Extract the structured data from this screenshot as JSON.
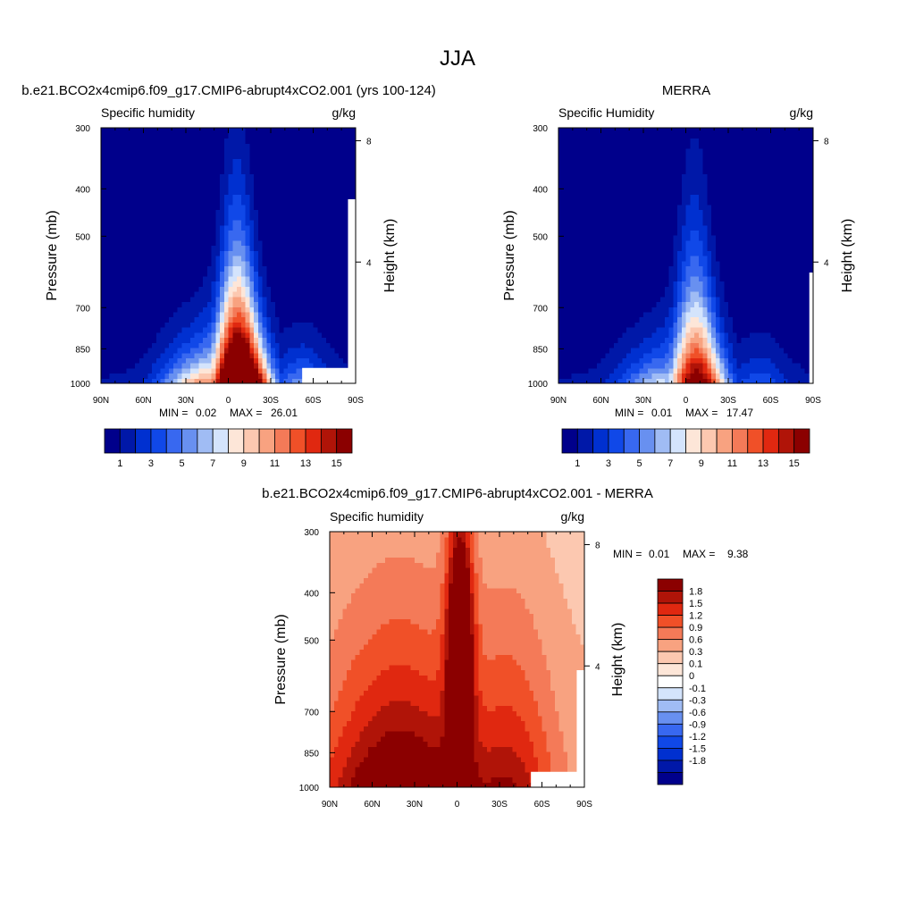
{
  "figure": {
    "title": "JJA"
  },
  "chart_data": [
    {
      "type": "heatmap",
      "title": "b.e21.BCO2x4cmip6.f09_g17.CMIP6-abrupt4xCO2.001 (yrs 100-124)",
      "left_string": "Specific humidity",
      "right_string": "g/kg",
      "ylabel": "Pressure (mb)",
      "ylabel_right": "Height (km)",
      "x_ticks": [
        "90N",
        "60N",
        "30N",
        "0",
        "30S",
        "60S",
        "90S"
      ],
      "y_ticks": [
        "300",
        "400",
        "500",
        "700",
        "850",
        "1000"
      ],
      "y_ticks_right": [
        "8",
        "4"
      ],
      "min_label": "MIN =",
      "min_value": "0.02",
      "max_label": "MAX =",
      "max_value": "26.01",
      "peak": 26.01,
      "colorbar": {
        "orientation": "horizontal",
        "labels": [
          "1",
          "3",
          "5",
          "7",
          "9",
          "11",
          "13",
          "15"
        ],
        "levels": [
          0,
          1,
          2,
          3,
          4,
          5,
          6,
          7,
          8,
          9,
          10,
          11,
          12,
          13,
          14,
          15,
          16
        ]
      }
    },
    {
      "type": "heatmap",
      "title": "MERRA",
      "left_string": "Specific Humidity",
      "right_string": "g/kg",
      "ylabel": "Pressure (mb)",
      "ylabel_right": "Height (km)",
      "x_ticks": [
        "90N",
        "60N",
        "30N",
        "0",
        "30S",
        "60S",
        "90S"
      ],
      "y_ticks": [
        "300",
        "400",
        "500",
        "700",
        "850",
        "1000"
      ],
      "y_ticks_right": [
        "8",
        "4"
      ],
      "min_label": "MIN =",
      "min_value": "0.01",
      "max_label": "MAX =",
      "max_value": "17.47",
      "peak": 17.47,
      "colorbar": {
        "orientation": "horizontal",
        "labels": [
          "1",
          "3",
          "5",
          "7",
          "9",
          "11",
          "13",
          "15"
        ],
        "levels": [
          0,
          1,
          2,
          3,
          4,
          5,
          6,
          7,
          8,
          9,
          10,
          11,
          12,
          13,
          14,
          15,
          16
        ]
      }
    },
    {
      "type": "heatmap",
      "title": "b.e21.BCO2x4cmip6.f09_g17.CMIP6-abrupt4xCO2.001 - MERRA",
      "left_string": "Specific humidity",
      "right_string": "g/kg",
      "ylabel": "Pressure (mb)",
      "ylabel_right": "Height (km)",
      "x_ticks": [
        "90N",
        "60N",
        "30N",
        "0",
        "30S",
        "60S",
        "90S"
      ],
      "y_ticks": [
        "300",
        "400",
        "500",
        "700",
        "850",
        "1000"
      ],
      "y_ticks_right": [
        "8",
        "4"
      ],
      "min_label": "MIN =",
      "min_value": "0.01",
      "max_label": "MAX =",
      "max_value": "9.38",
      "colorbar": {
        "orientation": "vertical",
        "labels": [
          "1.8",
          "1.5",
          "1.2",
          "0.9",
          "0.6",
          "0.3",
          "0.1",
          "0",
          "-0.1",
          "-0.3",
          "-0.6",
          "-0.9",
          "-1.2",
          "-1.5",
          "-1.8"
        ],
        "levels": [
          -1.8,
          -1.5,
          -1.2,
          -0.9,
          -0.6,
          -0.3,
          -0.1,
          0,
          0.1,
          0.3,
          0.6,
          0.9,
          1.2,
          1.5,
          1.8
        ]
      }
    }
  ],
  "colors": {
    "seq": [
      "#00008b",
      "#0018a8",
      "#0030d0",
      "#1048e8",
      "#3868f0",
      "#6890f0",
      "#a0bcf4",
      "#d4e4fc",
      "#fde6d8",
      "#fcc8b0",
      "#f8a280",
      "#f47a58",
      "#f05028",
      "#e02810",
      "#b01408",
      "#8b0000"
    ],
    "diff_warm": [
      "#fde6d8",
      "#fcc8b0",
      "#f8a280",
      "#f47a58",
      "#f05028",
      "#e02810",
      "#b01408",
      "#8b0000"
    ],
    "diff_cool": [
      "#d4e4fc",
      "#a0bcf4",
      "#6890f0",
      "#3868f0",
      "#1048e8",
      "#0030d0",
      "#0018a8",
      "#00008b"
    ],
    "diff_zero": "#ffffff"
  }
}
